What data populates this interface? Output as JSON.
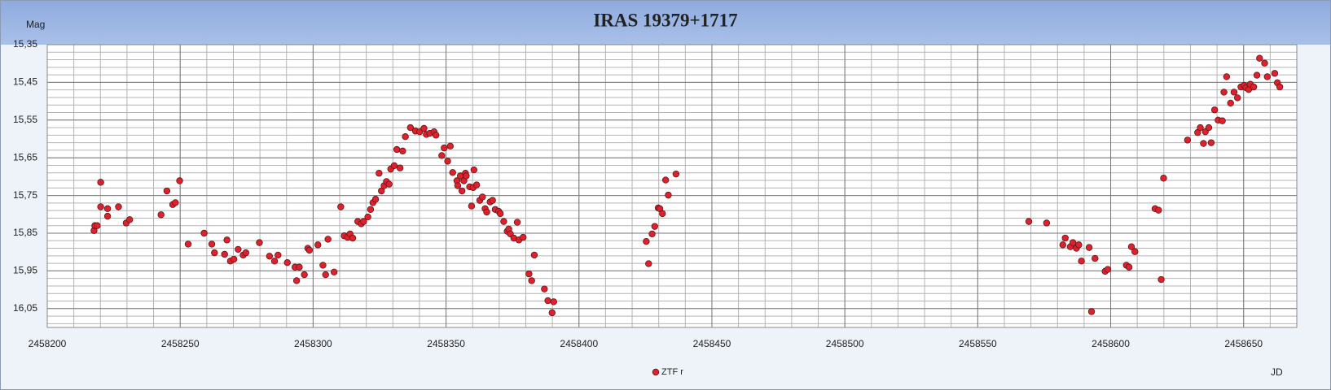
{
  "chart_data": {
    "type": "scatter",
    "title": "IRAS 19379+1717",
    "ylabel": "Mag",
    "xlabel": "JD",
    "xlim": [
      2458200,
      2458670
    ],
    "xticks": [
      2458200,
      2458250,
      2458300,
      2458350,
      2458400,
      2458450,
      2458500,
      2458550,
      2458600,
      2458650
    ],
    "ylim": [
      15.35,
      16.1
    ],
    "y_inverted": true,
    "yticks": [
      {
        "value": 15.35,
        "label": "15,35"
      },
      {
        "value": 15.45,
        "label": "15,45"
      },
      {
        "value": 15.55,
        "label": "15,55"
      },
      {
        "value": 15.65,
        "label": "15,65"
      },
      {
        "value": 15.75,
        "label": "15,75"
      },
      {
        "value": 15.85,
        "label": "15,85"
      },
      {
        "value": 15.95,
        "label": "15,95"
      },
      {
        "value": 16.05,
        "label": "16,05"
      }
    ],
    "grid": true,
    "legend": "bottom",
    "series": [
      {
        "name": "ZTF r",
        "color": "#e0202a",
        "x": [
          2458217.6,
          2458217.9,
          2458218.8,
          2458220.1,
          2458220.1,
          2458222.7,
          2458222.7,
          2458226.8,
          2458229.7,
          2458231.0,
          2458242.8,
          2458245.0,
          2458247.2,
          2458248.2,
          2458249.8,
          2458253.0,
          2458259.0,
          2458261.9,
          2458262.9,
          2458266.7,
          2458267.6,
          2458268.9,
          2458270.2,
          2458271.8,
          2458273.7,
          2458274.7,
          2458279.8,
          2458283.6,
          2458285.5,
          2458286.8,
          2458290.3,
          2458293.2,
          2458293.8,
          2458294.8,
          2458296.7,
          2458298.0,
          2458298.6,
          2458301.8,
          2458303.7,
          2458304.7,
          2458305.6,
          2458307.9,
          2458310.4,
          2458311.7,
          2458313.0,
          2458313.9,
          2458314.9,
          2458316.8,
          2458318.1,
          2458319.0,
          2458320.6,
          2458321.6,
          2458322.5,
          2458323.5,
          2458324.8,
          2458325.7,
          2458326.7,
          2458327.6,
          2458328.6,
          2458329.2,
          2458330.5,
          2458331.5,
          2458332.7,
          2458333.7,
          2458334.7,
          2458336.6,
          2458338.5,
          2458340.1,
          2458341.7,
          2458342.6,
          2458343.9,
          2458345.5,
          2458346.2,
          2458348.4,
          2458349.3,
          2458350.6,
          2458351.6,
          2458352.5,
          2458354.1,
          2458354.4,
          2458355.4,
          2458356.0,
          2458356.7,
          2458357.3,
          2458357.6,
          2458358.9,
          2458359.6,
          2458360.2,
          2458360.5,
          2458361.5,
          2458362.7,
          2458363.7,
          2458364.7,
          2458365.3,
          2458366.6,
          2458367.5,
          2458368.5,
          2458369.8,
          2458370.4,
          2458371.7,
          2458373.0,
          2458373.6,
          2458374.2,
          2458375.5,
          2458376.8,
          2458377.4,
          2458379.0,
          2458383.2,
          2458381.2,
          2458382.2,
          2458387.0,
          2458388.3,
          2458389.9,
          2458390.5,
          2458425.3,
          2458426.2,
          2458427.5,
          2458428.5,
          2458429.8,
          2458430.4,
          2458431.4,
          2458432.6,
          2458433.6,
          2458436.5,
          2458569.2,
          2458575.9,
          2458582.0,
          2458582.9,
          2458584.8,
          2458585.8,
          2458587.1,
          2458588.0,
          2458589.0,
          2458591.9,
          2458592.8,
          2458594.1,
          2458597.9,
          2458598.9,
          2458605.9,
          2458606.9,
          2458607.8,
          2458609.1,
          2458616.7,
          2458618.0,
          2458619.0,
          2458619.9,
          2458628.9,
          2458632.7,
          2458633.7,
          2458634.9,
          2458635.6,
          2458636.9,
          2458637.8,
          2458639.1,
          2458640.4,
          2458642.0,
          2458642.6,
          2458643.6,
          2458645.1,
          2458646.4,
          2458647.7,
          2458649.0,
          2458650.2,
          2458650.9,
          2458651.9,
          2458652.5,
          2458653.8,
          2458655.0,
          2458656.0,
          2458657.9,
          2458658.9,
          2458661.7,
          2458662.7,
          2458663.6
        ],
        "values": [
          15.843,
          15.83,
          15.83,
          15.715,
          15.78,
          15.785,
          15.805,
          15.78,
          15.823,
          15.814,
          15.801,
          15.738,
          15.774,
          15.769,
          15.711,
          15.879,
          15.85,
          15.879,
          15.902,
          15.906,
          15.868,
          15.924,
          15.919,
          15.893,
          15.908,
          15.902,
          15.875,
          15.911,
          15.924,
          15.908,
          15.928,
          15.94,
          15.976,
          15.94,
          15.96,
          15.89,
          15.895,
          15.881,
          15.935,
          15.96,
          15.866,
          15.953,
          15.78,
          15.857,
          15.861,
          15.852,
          15.863,
          15.819,
          15.825,
          15.819,
          15.807,
          15.787,
          15.769,
          15.76,
          15.691,
          15.738,
          15.724,
          15.713,
          15.72,
          15.68,
          15.671,
          15.628,
          15.677,
          15.632,
          15.594,
          15.57,
          15.579,
          15.581,
          15.572,
          15.588,
          15.585,
          15.581,
          15.59,
          15.644,
          15.624,
          15.659,
          15.619,
          15.689,
          15.711,
          15.724,
          15.698,
          15.738,
          15.711,
          15.691,
          15.698,
          15.727,
          15.778,
          15.729,
          15.682,
          15.722,
          15.763,
          15.754,
          15.785,
          15.794,
          15.767,
          15.763,
          15.787,
          15.792,
          15.798,
          15.819,
          15.845,
          15.839,
          15.852,
          15.863,
          15.821,
          15.868,
          15.861,
          15.908,
          15.958,
          15.976,
          15.998,
          16.029,
          16.061,
          16.032,
          15.872,
          15.931,
          15.852,
          15.832,
          15.783,
          15.785,
          15.798,
          15.709,
          15.749,
          15.693,
          15.819,
          15.823,
          15.881,
          15.863,
          15.886,
          15.875,
          15.89,
          15.881,
          15.924,
          15.888,
          16.058,
          15.917,
          15.951,
          15.946,
          15.935,
          15.94,
          15.886,
          15.899,
          15.785,
          15.789,
          15.973,
          15.704,
          15.603,
          15.583,
          15.57,
          15.612,
          15.581,
          15.57,
          15.61,
          15.523,
          15.55,
          15.552,
          15.476,
          15.435,
          15.505,
          15.476,
          15.491,
          15.462,
          15.458,
          15.464,
          15.469,
          15.455,
          15.462,
          15.431,
          15.386,
          15.399,
          15.435,
          15.426,
          15.451,
          15.462
        ]
      }
    ]
  }
}
